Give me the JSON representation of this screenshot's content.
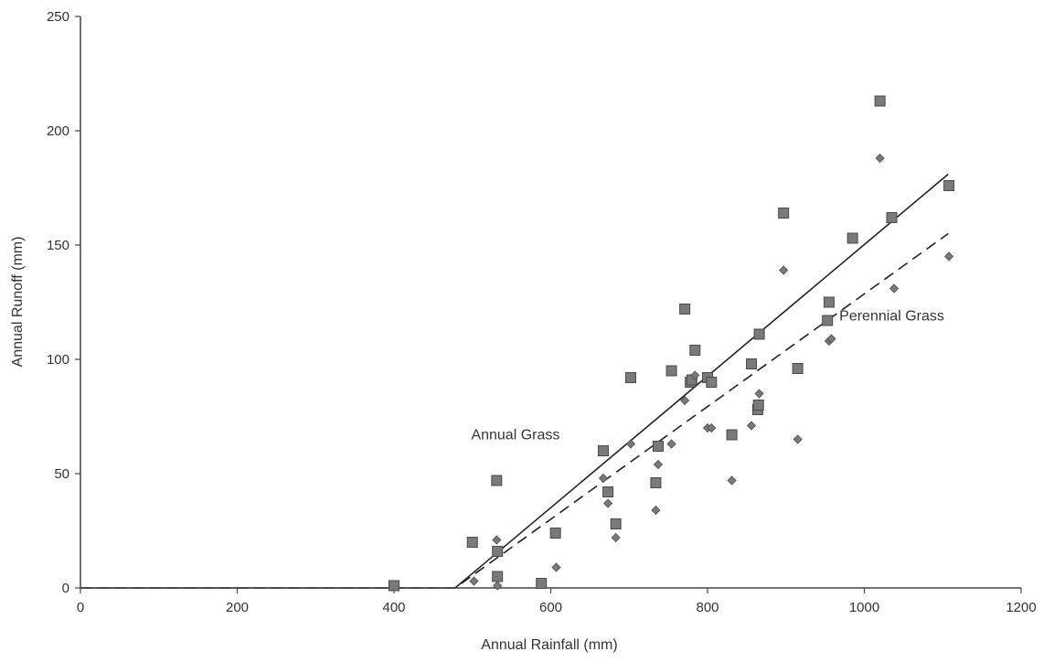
{
  "chart_data": {
    "type": "scatter",
    "title": "",
    "xlabel": "Annual Rainfall (mm)",
    "ylabel": "Annual Runoff (mm)",
    "xlim": [
      0,
      1200
    ],
    "ylim": [
      0,
      250
    ],
    "xticks": [
      0,
      200,
      400,
      600,
      800,
      1000,
      1200
    ],
    "yticks": [
      0,
      50,
      100,
      150,
      200,
      250
    ],
    "grid": false,
    "legend": "none",
    "colors": {
      "marker": "#7a7a7a",
      "marker_edge": "#4a4a4a",
      "line": "#222222",
      "axis": "#444444"
    },
    "annotations": [
      {
        "text": "Annual Grass",
        "x": 555,
        "y": 65
      },
      {
        "text": "Perennial Grass",
        "x": 1035,
        "y": 117
      }
    ],
    "series": [
      {
        "marker": "square",
        "points": [
          [
            400,
            1
          ],
          [
            500,
            20
          ],
          [
            531,
            47
          ],
          [
            532,
            16
          ],
          [
            532,
            5
          ],
          [
            588,
            2
          ],
          [
            606,
            24
          ],
          [
            667,
            60
          ],
          [
            673,
            42
          ],
          [
            683,
            28
          ],
          [
            702,
            92
          ],
          [
            734,
            46
          ],
          [
            737,
            62
          ],
          [
            754,
            95
          ],
          [
            771,
            122
          ],
          [
            778,
            90
          ],
          [
            780,
            91
          ],
          [
            784,
            104
          ],
          [
            800,
            92
          ],
          [
            805,
            90
          ],
          [
            831,
            67
          ],
          [
            856,
            98
          ],
          [
            864,
            78
          ],
          [
            865,
            80
          ],
          [
            866,
            111
          ],
          [
            897,
            164
          ],
          [
            915,
            96
          ],
          [
            953,
            117
          ],
          [
            955,
            125
          ],
          [
            985,
            153
          ],
          [
            1020,
            213
          ],
          [
            1035,
            162
          ],
          [
            1108,
            176
          ]
        ]
      },
      {
        "marker": "diamond",
        "points": [
          [
            502,
            3
          ],
          [
            531,
            21
          ],
          [
            532,
            1
          ],
          [
            607,
            9
          ],
          [
            667,
            48
          ],
          [
            673,
            37
          ],
          [
            683,
            22
          ],
          [
            702,
            63
          ],
          [
            734,
            34
          ],
          [
            737,
            54
          ],
          [
            754,
            63
          ],
          [
            771,
            82
          ],
          [
            784,
            93
          ],
          [
            800,
            70
          ],
          [
            805,
            70
          ],
          [
            831,
            47
          ],
          [
            856,
            71
          ],
          [
            866,
            85
          ],
          [
            897,
            139
          ],
          [
            915,
            65
          ],
          [
            955,
            108
          ],
          [
            958,
            109
          ],
          [
            1020,
            188
          ],
          [
            1038,
            131
          ],
          [
            1108,
            145
          ]
        ]
      }
    ],
    "fits": [
      {
        "style": "solid",
        "points": [
          [
            0,
            0
          ],
          [
            478,
            0
          ],
          [
            1107,
            181
          ]
        ]
      },
      {
        "style": "dashed",
        "points": [
          [
            0,
            0
          ],
          [
            478,
            0
          ],
          [
            1107,
            155
          ]
        ]
      }
    ]
  }
}
